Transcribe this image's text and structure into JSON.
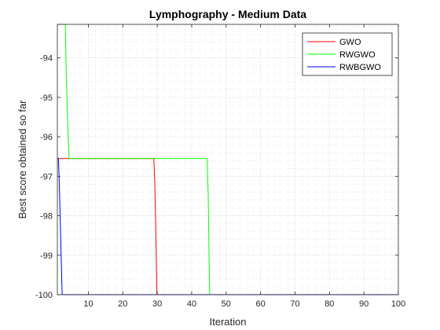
{
  "chart_data": {
    "type": "line",
    "title": "Lymphography - Medium Data",
    "xlabel": "Iteration",
    "ylabel": "Best score obtained so far",
    "xlim": [
      1,
      100
    ],
    "ylim": [
      -100,
      -93.15
    ],
    "x_ticks": [
      10,
      20,
      30,
      40,
      50,
      60,
      70,
      80,
      90,
      100
    ],
    "x_tick_labels": [
      "10",
      "20",
      "30",
      "40",
      "50",
      "60",
      "70",
      "80",
      "90",
      "100"
    ],
    "y_ticks": [
      -100,
      -99,
      -98,
      -97,
      -96,
      -95,
      -94
    ],
    "y_tick_labels": [
      "-100",
      "-99",
      "-98",
      "-97",
      "-96",
      "-95",
      "-94"
    ],
    "grid": true,
    "legend_position": "top-right",
    "series": [
      {
        "name": "GWO",
        "color": "#ff0000",
        "points": [
          [
            1,
            -96.55
          ],
          [
            29,
            -96.55
          ],
          [
            29.3,
            -97.2
          ],
          [
            29.6,
            -98.5
          ],
          [
            29.9,
            -100
          ],
          [
            100,
            -100
          ]
        ]
      },
      {
        "name": "RWGWO",
        "color": "#00ff00",
        "points": [
          [
            1,
            -93.15
          ],
          [
            3.3,
            -93.15
          ],
          [
            3.6,
            -94.5
          ],
          [
            4,
            -95.6
          ],
          [
            4.4,
            -96.55
          ],
          [
            44.5,
            -96.55
          ],
          [
            44.8,
            -97.5
          ],
          [
            45,
            -98.8
          ],
          [
            45.2,
            -100
          ],
          [
            100,
            -100
          ]
        ]
      },
      {
        "name": "RWBGWO",
        "color": "#0000ff",
        "points": [
          [
            1,
            -96.55
          ],
          [
            1.3,
            -96.55
          ],
          [
            1.5,
            -97.0
          ],
          [
            1.8,
            -98.0
          ],
          [
            2.1,
            -99.0
          ],
          [
            2.4,
            -100
          ],
          [
            100,
            -100
          ]
        ]
      }
    ]
  }
}
